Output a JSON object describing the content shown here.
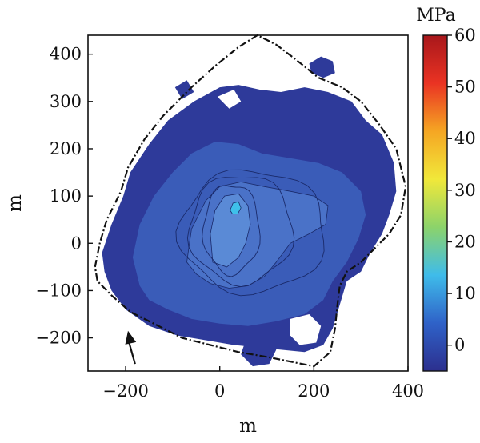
{
  "chart_data": {
    "type": "heatmap",
    "title": "",
    "xlabel": "m",
    "ylabel": "m",
    "xlim": [
      -280,
      400
    ],
    "ylim": [
      -270,
      440
    ],
    "x_ticks": [
      {
        "value": -200,
        "label": "−200"
      },
      {
        "value": 0,
        "label": "0"
      },
      {
        "value": 200,
        "label": "200"
      },
      {
        "value": 400,
        "label": "400"
      }
    ],
    "y_ticks": [
      {
        "value": 400,
        "label": "400"
      },
      {
        "value": 300,
        "label": "300"
      },
      {
        "value": 200,
        "label": "200"
      },
      {
        "value": 100,
        "label": "100"
      },
      {
        "value": 0,
        "label": "0"
      },
      {
        "value": -100,
        "label": "−100"
      },
      {
        "value": -200,
        "label": "−200"
      }
    ],
    "colorbar": {
      "unit": "MPa",
      "range": [
        -5,
        60
      ],
      "colors": [
        "#2c2f8e",
        "#2f62c8",
        "#3fbcea",
        "#8cd36a",
        "#f1e83a",
        "#f5a623",
        "#ea3323",
        "#a8171b"
      ],
      "ticks": [
        {
          "value": 60,
          "label": "60"
        },
        {
          "value": 50,
          "label": "50"
        },
        {
          "value": 40,
          "label": "40"
        },
        {
          "value": 30,
          "label": "30"
        },
        {
          "value": 20,
          "label": "20"
        },
        {
          "value": 10,
          "label": "10"
        },
        {
          "value": 0,
          "label": "0"
        }
      ]
    },
    "field_colors": {
      "background_stress": "#2e3a9a",
      "mid_stress": "#3a5cb8",
      "inner_stress": "#4a72c8",
      "core_stress": "#5a8ad6",
      "peak_stress": "#3fc0ea"
    },
    "boundary": {
      "style": "dash-dot",
      "color": "#111111",
      "points": [
        [
          -265,
          -50
        ],
        [
          -255,
          0
        ],
        [
          -240,
          50
        ],
        [
          -210,
          110
        ],
        [
          -195,
          160
        ],
        [
          -160,
          220
        ],
        [
          -120,
          270
        ],
        [
          -60,
          330
        ],
        [
          -10,
          375
        ],
        [
          40,
          415
        ],
        [
          80,
          440
        ],
        [
          120,
          420
        ],
        [
          160,
          390
        ],
        [
          210,
          350
        ],
        [
          260,
          330
        ],
        [
          300,
          300
        ],
        [
          340,
          250
        ],
        [
          375,
          200
        ],
        [
          395,
          120
        ],
        [
          385,
          60
        ],
        [
          360,
          20
        ],
        [
          330,
          -10
        ],
        [
          300,
          -40
        ],
        [
          270,
          -60
        ],
        [
          255,
          -90
        ],
        [
          250,
          -130
        ],
        [
          245,
          -180
        ],
        [
          235,
          -230
        ],
        [
          200,
          -260
        ],
        [
          150,
          -250
        ],
        [
          100,
          -240
        ],
        [
          40,
          -230
        ],
        [
          -20,
          -215
        ],
        [
          -80,
          -200
        ],
        [
          -140,
          -170
        ],
        [
          -190,
          -145
        ],
        [
          -230,
          -110
        ],
        [
          -260,
          -80
        ],
        [
          -265,
          -50
        ]
      ]
    },
    "annotation": {
      "type": "arrow",
      "tail": [
        -180,
        -255
      ],
      "head": [
        -195,
        -185
      ]
    }
  }
}
